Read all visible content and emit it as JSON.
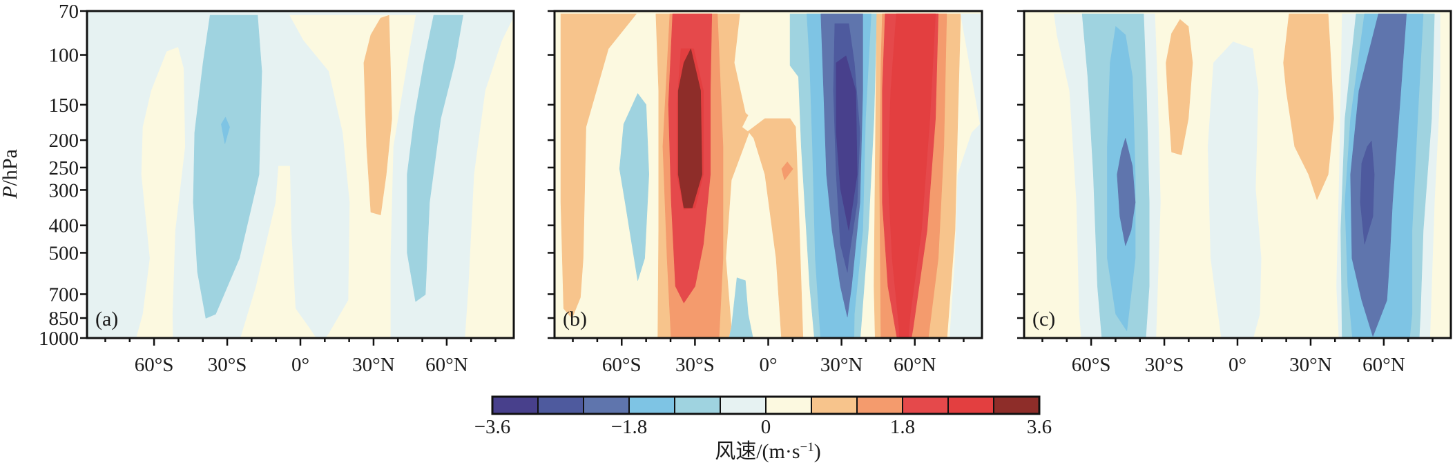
{
  "chart_data": {
    "type": "heatmap",
    "subtype": "filled-contour",
    "title": "",
    "ylabel_italic": "P",
    "ylabel_rest": "/hPa",
    "yscale": "log",
    "ylim": [
      1000,
      70
    ],
    "yticks": [
      70,
      100,
      150,
      200,
      250,
      300,
      400,
      500,
      700,
      850,
      1000
    ],
    "ytick_labels": [
      "70",
      "100",
      "150",
      "200",
      "250",
      "300",
      "400",
      "500",
      "700",
      "850",
      "1000"
    ],
    "xlim": [
      -87.5,
      87.5
    ],
    "xticks_major": [
      -60,
      -30,
      0,
      30,
      60
    ],
    "xtick_labels": [
      "60°S",
      "30°S",
      "0°",
      "30°N",
      "60°N"
    ],
    "xticks_minor": [
      -80,
      -70,
      -50,
      -40,
      -20,
      -10,
      10,
      20,
      40,
      50,
      70,
      80
    ],
    "panels": [
      {
        "label": "(a)",
        "features": [
          {
            "lat": -35,
            "p": 150,
            "value": -1.5,
            "note": "weak negative maximum"
          },
          {
            "lat": 26,
            "p": 130,
            "value": 0.9,
            "note": "weak positive band"
          },
          {
            "lat": 52,
            "p": 200,
            "value": -0.9,
            "note": "negative band"
          }
        ]
      },
      {
        "label": "(b)",
        "features": [
          {
            "lat": -32,
            "p": 180,
            "value": 3.3,
            "note": "positive maximum"
          },
          {
            "lat": 28,
            "p": 180,
            "value": -3.3,
            "note": "negative maximum"
          },
          {
            "lat": 58,
            "p": 200,
            "value": 2.4,
            "note": "positive band"
          },
          {
            "lat": -53,
            "p": 220,
            "value": -0.9,
            "note": "negative band"
          },
          {
            "lat": 7,
            "p": 200,
            "value": 1.5,
            "note": "small positive spot"
          }
        ]
      },
      {
        "label": "(c)",
        "features": [
          {
            "lat": -47,
            "p": 250,
            "value": -2.7,
            "note": "negative maximum"
          },
          {
            "lat": 58,
            "p": 250,
            "value": -3.3,
            "note": "negative maximum"
          },
          {
            "lat": -20,
            "p": 120,
            "value": 0.9,
            "note": "positive patch"
          },
          {
            "lat": 24,
            "p": 130,
            "value": 0.9,
            "note": "positive patch"
          },
          {
            "lat": 0,
            "p": 300,
            "value": -0.3,
            "note": "weak negative band"
          }
        ]
      }
    ],
    "colorbar": {
      "label": "风速/(m·s⁻¹)",
      "label_main": "风速/(m·s",
      "label_sup": "−1",
      "label_end": ")",
      "levels": [
        -3.6,
        -3.0,
        -2.4,
        -1.8,
        -1.2,
        -0.6,
        0,
        0.6,
        1.2,
        1.8,
        2.4,
        3.0,
        3.6
      ],
      "tick_values": [
        -3.6,
        -1.8,
        0,
        1.8,
        3.6
      ],
      "tick_labels": [
        "−3.6",
        "−1.8",
        "0",
        "1.8",
        "3.6"
      ],
      "colors": [
        "#48408c",
        "#4e5a9e",
        "#5f75ad",
        "#7ec4e4",
        "#9fd3e0",
        "#e6f2f2",
        "#fcf9e0",
        "#f7c48c",
        "#f49b6d",
        "#e5494b",
        "#e33f40",
        "#8e2d29"
      ]
    }
  }
}
